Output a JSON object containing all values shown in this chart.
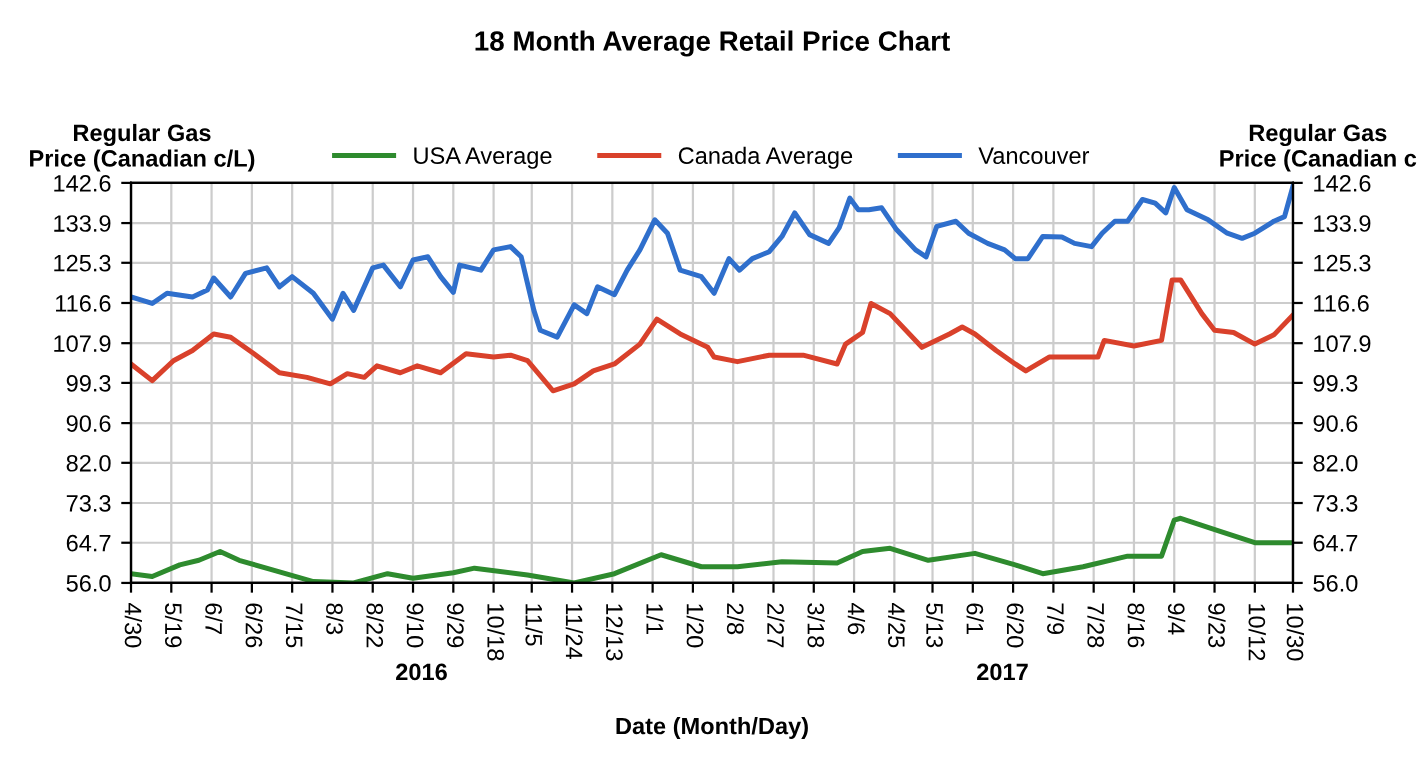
{
  "chart_data": {
    "type": "line",
    "title": "18 Month Average Retail Price Chart",
    "xlabel": "Date (Month/Day)",
    "ylabel": "Regular Gas\nPrice (Canadian c/L)",
    "y2label": "Regular Gas\nPrice (Canadian c",
    "annotations": [
      "2016",
      "2017"
    ],
    "xlim": [
      "2016-04-30",
      "2017-10-30"
    ],
    "xticks": [
      {
        "value": "2016-04-30",
        "label": "4/30"
      },
      {
        "value": "2016-05-19",
        "label": "5/19"
      },
      {
        "value": "2016-06-07",
        "label": "6/7"
      },
      {
        "value": "2016-06-26",
        "label": "6/26"
      },
      {
        "value": "2016-07-15",
        "label": "7/15"
      },
      {
        "value": "2016-08-03",
        "label": "8/3"
      },
      {
        "value": "2016-08-22",
        "label": "8/22"
      },
      {
        "value": "2016-09-10",
        "label": "9/10"
      },
      {
        "value": "2016-09-29",
        "label": "9/29"
      },
      {
        "value": "2016-10-18",
        "label": "10/18"
      },
      {
        "value": "2016-11-05",
        "label": "11/5"
      },
      {
        "value": "2016-11-24",
        "label": "11/24"
      },
      {
        "value": "2016-12-13",
        "label": "12/13"
      },
      {
        "value": "2017-01-01",
        "label": "1/1"
      },
      {
        "value": "2017-01-20",
        "label": "1/20"
      },
      {
        "value": "2017-02-08",
        "label": "2/8"
      },
      {
        "value": "2017-02-27",
        "label": "2/27"
      },
      {
        "value": "2017-03-18",
        "label": "3/18"
      },
      {
        "value": "2017-04-06",
        "label": "4/6"
      },
      {
        "value": "2017-04-25",
        "label": "4/25"
      },
      {
        "value": "2017-05-13",
        "label": "5/13"
      },
      {
        "value": "2017-06-01",
        "label": "6/1"
      },
      {
        "value": "2017-06-20",
        "label": "6/20"
      },
      {
        "value": "2017-07-09",
        "label": "7/9"
      },
      {
        "value": "2017-07-28",
        "label": "7/28"
      },
      {
        "value": "2017-08-16",
        "label": "8/16"
      },
      {
        "value": "2017-09-04",
        "label": "9/4"
      },
      {
        "value": "2017-09-23",
        "label": "9/23"
      },
      {
        "value": "2017-10-12",
        "label": "10/12"
      },
      {
        "value": "2017-10-30",
        "label": "10/30"
      }
    ],
    "ylim": [
      56.0,
      142.6
    ],
    "yticks": [
      {
        "value": 56.0,
        "label": "56.0"
      },
      64.7,
      73.3,
      {
        "value": 82.0,
        "label": "82.0"
      },
      90.6,
      99.3,
      107.9,
      116.6,
      125.3,
      133.9,
      142.6
    ],
    "y2lim": [
      56.0,
      142.6
    ],
    "y2ticks": [
      {
        "value": 56.0,
        "label": "56.0"
      },
      64.7,
      73.3,
      {
        "value": 82.0,
        "label": "82.0"
      },
      90.6,
      99.3,
      107.9,
      116.6,
      125.3,
      133.9,
      142.6
    ],
    "grid": true,
    "legend": "top",
    "marker": "none",
    "line_style": "solid",
    "series": [
      {
        "name": "USA Average",
        "color": "#2e8b2e",
        "x": [
          "2016-04-30",
          "2016-05-10",
          "2016-05-23",
          "2016-06-01",
          "2016-06-11",
          "2016-06-20",
          "2016-07-09",
          "2016-07-25",
          "2016-08-13",
          "2016-08-29",
          "2016-09-10",
          "2016-09-29",
          "2016-10-09",
          "2016-11-03",
          "2016-11-25",
          "2016-12-14",
          "2017-01-05",
          "2017-01-24",
          "2017-02-10",
          "2017-03-03",
          "2017-03-29",
          "2017-04-10",
          "2017-04-23",
          "2017-05-11",
          "2017-06-02",
          "2017-06-21",
          "2017-07-04",
          "2017-07-23",
          "2017-08-13",
          "2017-08-29",
          "2017-09-04",
          "2017-09-07",
          "2017-09-26",
          "2017-10-12",
          "2017-10-30"
        ],
        "values": [
          58.0,
          57.4,
          59.9,
          60.9,
          62.8,
          60.9,
          58.4,
          56.3,
          56.0,
          58.0,
          57.0,
          58.2,
          59.2,
          57.7,
          56.0,
          58.0,
          62.1,
          59.5,
          59.5,
          60.6,
          60.3,
          62.8,
          63.5,
          60.9,
          62.4,
          59.9,
          58.0,
          59.5,
          61.8,
          61.8,
          69.6,
          70.0,
          67.1,
          64.7,
          64.7
        ]
      },
      {
        "name": "Canada Average",
        "color": "#d9412b",
        "x": [
          "2016-04-30",
          "2016-05-10",
          "2016-05-20",
          "2016-05-29",
          "2016-06-08",
          "2016-06-16",
          "2016-06-27",
          "2016-07-09",
          "2016-07-22",
          "2016-08-02",
          "2016-08-10",
          "2016-08-18",
          "2016-08-24",
          "2016-09-04",
          "2016-09-12",
          "2016-09-23",
          "2016-10-05",
          "2016-10-18",
          "2016-10-26",
          "2016-11-03",
          "2016-11-15",
          "2016-11-25",
          "2016-12-04",
          "2016-12-14",
          "2016-12-26",
          "2017-01-03",
          "2017-01-14",
          "2017-01-27",
          "2017-01-30",
          "2017-02-10",
          "2017-02-25",
          "2017-03-13",
          "2017-03-29",
          "2017-04-02",
          "2017-04-10",
          "2017-04-14",
          "2017-04-23",
          "2017-05-08",
          "2017-05-21",
          "2017-05-27",
          "2017-06-02",
          "2017-06-12",
          "2017-06-21",
          "2017-06-26",
          "2017-07-07",
          "2017-07-19",
          "2017-07-30",
          "2017-08-02",
          "2017-08-16",
          "2017-08-29",
          "2017-09-03",
          "2017-09-07",
          "2017-09-17",
          "2017-09-23",
          "2017-10-02",
          "2017-10-12",
          "2017-10-21",
          "2017-10-30"
        ],
        "values": [
          103.4,
          99.8,
          104.1,
          106.3,
          109.9,
          109.2,
          105.6,
          101.5,
          100.5,
          99.1,
          101.3,
          100.5,
          103.0,
          101.5,
          103.0,
          101.5,
          105.6,
          104.9,
          105.3,
          104.1,
          97.6,
          99.1,
          101.9,
          103.4,
          107.7,
          113.1,
          109.9,
          107.0,
          104.9,
          103.9,
          105.3,
          105.3,
          103.4,
          107.7,
          110.2,
          116.5,
          114.3,
          107.0,
          109.9,
          111.4,
          109.9,
          106.3,
          103.4,
          101.9,
          104.9,
          104.9,
          104.9,
          108.5,
          107.3,
          108.5,
          121.6,
          121.6,
          114.3,
          110.7,
          110.2,
          107.7,
          109.7,
          114.0
        ]
      },
      {
        "name": "Vancouver",
        "color": "#2f6fcc",
        "x": [
          "2016-04-30",
          "2016-05-10",
          "2016-05-17",
          "2016-05-29",
          "2016-06-05",
          "2016-06-08",
          "2016-06-16",
          "2016-06-23",
          "2016-07-03",
          "2016-07-09",
          "2016-07-15",
          "2016-07-25",
          "2016-08-03",
          "2016-08-08",
          "2016-08-13",
          "2016-08-22",
          "2016-08-27",
          "2016-09-04",
          "2016-09-10",
          "2016-09-17",
          "2016-09-23",
          "2016-09-29",
          "2016-10-02",
          "2016-10-12",
          "2016-10-18",
          "2016-10-26",
          "2016-10-31",
          "2016-11-06",
          "2016-11-09",
          "2016-11-17",
          "2016-11-25",
          "2016-12-01",
          "2016-12-06",
          "2016-12-14",
          "2016-12-20",
          "2016-12-26",
          "2017-01-02",
          "2017-01-08",
          "2017-01-14",
          "2017-01-24",
          "2017-01-30",
          "2017-02-06",
          "2017-02-11",
          "2017-02-17",
          "2017-02-25",
          "2017-03-03",
          "2017-03-09",
          "2017-03-16",
          "2017-03-25",
          "2017-03-30",
          "2017-04-04",
          "2017-04-08",
          "2017-04-13",
          "2017-04-19",
          "2017-04-26",
          "2017-05-05",
          "2017-05-10",
          "2017-05-15",
          "2017-05-24",
          "2017-05-30",
          "2017-06-08",
          "2017-06-16",
          "2017-06-21",
          "2017-06-27",
          "2017-07-04",
          "2017-07-13",
          "2017-07-19",
          "2017-07-27",
          "2017-08-01",
          "2017-08-07",
          "2017-08-13",
          "2017-08-20",
          "2017-08-26",
          "2017-08-31",
          "2017-09-04",
          "2017-09-10",
          "2017-09-20",
          "2017-09-29",
          "2017-10-06",
          "2017-10-12",
          "2017-10-21",
          "2017-10-26",
          "2017-10-30"
        ],
        "values": [
          117.9,
          116.5,
          118.7,
          117.9,
          119.4,
          122.0,
          117.9,
          123.0,
          124.2,
          120.1,
          122.3,
          118.7,
          113.1,
          118.7,
          115.0,
          124.2,
          124.8,
          120.1,
          125.9,
          126.6,
          122.3,
          118.9,
          124.8,
          123.7,
          128.1,
          128.8,
          126.6,
          115.0,
          110.7,
          109.2,
          116.2,
          114.3,
          120.1,
          118.4,
          123.7,
          128.1,
          134.6,
          131.7,
          123.7,
          122.3,
          118.7,
          126.2,
          123.7,
          126.2,
          127.7,
          131.0,
          136.1,
          131.4,
          129.5,
          132.9,
          139.3,
          136.8,
          136.8,
          137.2,
          132.5,
          128.1,
          126.6,
          133.2,
          134.3,
          131.7,
          129.5,
          128.1,
          126.2,
          126.2,
          131.0,
          130.9,
          129.5,
          128.8,
          131.7,
          134.3,
          134.3,
          139.0,
          138.2,
          136.1,
          141.6,
          136.8,
          134.6,
          131.7,
          130.6,
          131.7,
          134.3,
          135.3,
          141.9
        ]
      }
    ]
  }
}
